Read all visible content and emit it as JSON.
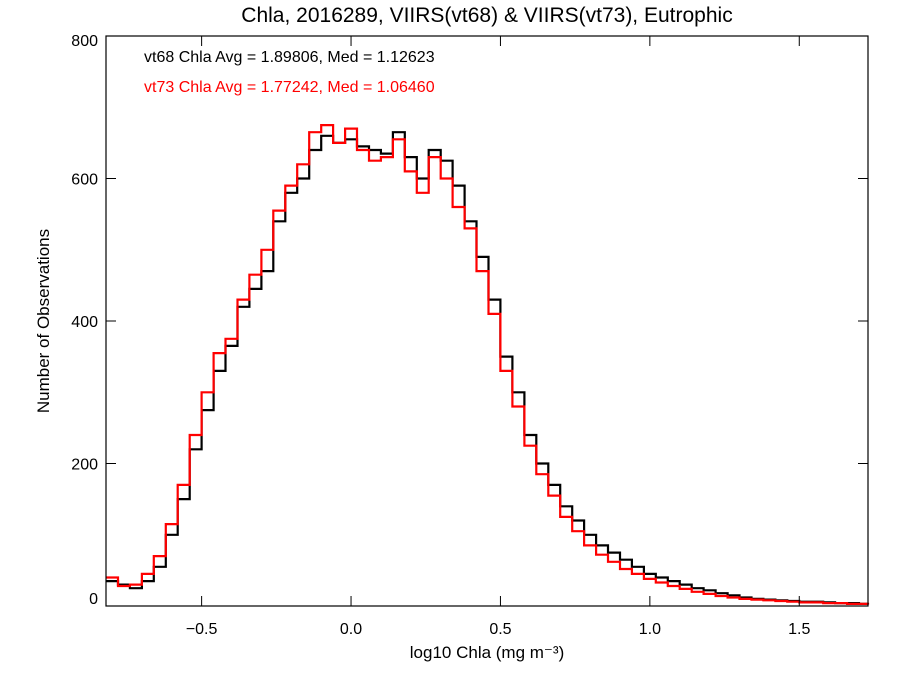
{
  "chart_data": {
    "type": "line",
    "title": "Chla, 2016289, VIIRS(vt68) & VIIRS(vt73), Eutrophic",
    "xlabel": "log10 Chla (mg m⁻³)",
    "ylabel": "Number of Observations",
    "xlim": [
      -0.82,
      1.73
    ],
    "ylim": [
      0,
      800
    ],
    "xticks": [
      -0.5,
      0.0,
      0.5,
      1.0,
      1.5
    ],
    "xtick_labels": [
      "−0.5",
      "0.0",
      "0.5",
      "1.0",
      "1.5"
    ],
    "yticks": [
      0,
      200,
      400,
      600,
      800
    ],
    "ytick_labels": [
      "0",
      "200",
      "400",
      "600",
      "800"
    ],
    "annotations": [
      {
        "text": "vt68 Chla Avg = 1.89806, Med = 1.12623",
        "color": "#000000"
      },
      {
        "text": "vt73 Chla Avg = 1.77242, Med = 1.06460",
        "color": "#ff0000"
      }
    ],
    "style": "histogram-step",
    "grid": false,
    "series": [
      {
        "color": "#000000",
        "points": [
          [
            -0.82,
            35
          ],
          [
            -0.78,
            30
          ],
          [
            -0.74,
            25
          ],
          [
            -0.7,
            35
          ],
          [
            -0.66,
            55
          ],
          [
            -0.62,
            100
          ],
          [
            -0.58,
            150
          ],
          [
            -0.54,
            220
          ],
          [
            -0.5,
            275
          ],
          [
            -0.46,
            330
          ],
          [
            -0.42,
            365
          ],
          [
            -0.38,
            420
          ],
          [
            -0.34,
            445
          ],
          [
            -0.3,
            470
          ],
          [
            -0.26,
            540
          ],
          [
            -0.22,
            580
          ],
          [
            -0.18,
            600
          ],
          [
            -0.14,
            640
          ],
          [
            -0.1,
            660
          ],
          [
            -0.06,
            650
          ],
          [
            -0.02,
            655
          ],
          [
            0.02,
            645
          ],
          [
            0.06,
            640
          ],
          [
            0.1,
            635
          ],
          [
            0.14,
            665
          ],
          [
            0.18,
            630
          ],
          [
            0.22,
            600
          ],
          [
            0.26,
            640
          ],
          [
            0.3,
            625
          ],
          [
            0.34,
            590
          ],
          [
            0.38,
            540
          ],
          [
            0.42,
            490
          ],
          [
            0.46,
            430
          ],
          [
            0.5,
            350
          ],
          [
            0.54,
            300
          ],
          [
            0.58,
            240
          ],
          [
            0.62,
            200
          ],
          [
            0.66,
            170
          ],
          [
            0.7,
            140
          ],
          [
            0.74,
            120
          ],
          [
            0.78,
            100
          ],
          [
            0.82,
            85
          ],
          [
            0.86,
            75
          ],
          [
            0.9,
            65
          ],
          [
            0.94,
            55
          ],
          [
            0.98,
            45
          ],
          [
            1.02,
            40
          ],
          [
            1.06,
            35
          ],
          [
            1.1,
            30
          ],
          [
            1.14,
            25
          ],
          [
            1.18,
            22
          ],
          [
            1.22,
            18
          ],
          [
            1.26,
            15
          ],
          [
            1.3,
            12
          ],
          [
            1.34,
            10
          ],
          [
            1.38,
            9
          ],
          [
            1.42,
            8
          ],
          [
            1.46,
            7
          ],
          [
            1.5,
            6
          ],
          [
            1.54,
            6
          ],
          [
            1.58,
            5
          ],
          [
            1.62,
            4
          ],
          [
            1.66,
            4
          ],
          [
            1.7,
            3
          ],
          [
            1.73,
            3
          ]
        ]
      },
      {
        "color": "#ff0000",
        "points": [
          [
            -0.82,
            40
          ],
          [
            -0.78,
            28
          ],
          [
            -0.74,
            30
          ],
          [
            -0.7,
            45
          ],
          [
            -0.66,
            70
          ],
          [
            -0.62,
            115
          ],
          [
            -0.58,
            170
          ],
          [
            -0.54,
            240
          ],
          [
            -0.5,
            300
          ],
          [
            -0.46,
            355
          ],
          [
            -0.42,
            375
          ],
          [
            -0.38,
            430
          ],
          [
            -0.34,
            465
          ],
          [
            -0.3,
            500
          ],
          [
            -0.26,
            555
          ],
          [
            -0.22,
            590
          ],
          [
            -0.18,
            620
          ],
          [
            -0.14,
            665
          ],
          [
            -0.1,
            675
          ],
          [
            -0.06,
            650
          ],
          [
            -0.02,
            670
          ],
          [
            0.02,
            640
          ],
          [
            0.06,
            625
          ],
          [
            0.1,
            630
          ],
          [
            0.14,
            655
          ],
          [
            0.18,
            610
          ],
          [
            0.22,
            580
          ],
          [
            0.26,
            630
          ],
          [
            0.3,
            600
          ],
          [
            0.34,
            560
          ],
          [
            0.38,
            530
          ],
          [
            0.42,
            470
          ],
          [
            0.46,
            410
          ],
          [
            0.5,
            330
          ],
          [
            0.54,
            280
          ],
          [
            0.58,
            225
          ],
          [
            0.62,
            185
          ],
          [
            0.66,
            155
          ],
          [
            0.7,
            125
          ],
          [
            0.74,
            105
          ],
          [
            0.78,
            85
          ],
          [
            0.82,
            72
          ],
          [
            0.86,
            62
          ],
          [
            0.9,
            52
          ],
          [
            0.94,
            45
          ],
          [
            0.98,
            38
          ],
          [
            1.02,
            33
          ],
          [
            1.06,
            28
          ],
          [
            1.1,
            24
          ],
          [
            1.14,
            20
          ],
          [
            1.18,
            17
          ],
          [
            1.22,
            14
          ],
          [
            1.26,
            12
          ],
          [
            1.3,
            10
          ],
          [
            1.34,
            9
          ],
          [
            1.38,
            8
          ],
          [
            1.42,
            7
          ],
          [
            1.46,
            6
          ],
          [
            1.5,
            5
          ],
          [
            1.54,
            5
          ],
          [
            1.58,
            4
          ],
          [
            1.62,
            4
          ],
          [
            1.66,
            3
          ],
          [
            1.7,
            3
          ],
          [
            1.73,
            2
          ]
        ]
      }
    ]
  }
}
